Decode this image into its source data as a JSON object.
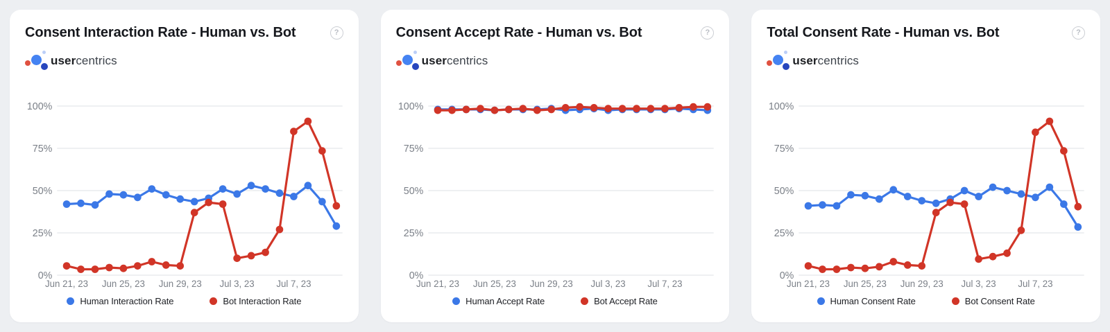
{
  "theme": {
    "page_bg": "#edeff2",
    "card_bg": "#ffffff",
    "title_color": "#16181d",
    "axis_label_color": "#7b8088",
    "grid_color": "#e9ebee",
    "human_color": "#3b78e7",
    "bot_color": "#d13527",
    "help_glyph": "?"
  },
  "logo": {
    "bold": "user",
    "light": "centrics"
  },
  "cards": [
    {
      "title": "Consent Interaction Rate - Human vs. Bot"
    },
    {
      "title": "Consent Accept Rate - Human vs. Bot"
    },
    {
      "title": "Total Consent Rate - Human vs. Bot"
    }
  ],
  "chart_data": [
    {
      "type": "line",
      "title": "Consent Interaction Rate - Human vs. Bot",
      "x": [
        "Jun 21, 23",
        "Jun 22, 23",
        "Jun 23, 23",
        "Jun 24, 23",
        "Jun 25, 23",
        "Jun 26, 23",
        "Jun 27, 23",
        "Jun 28, 23",
        "Jun 29, 23",
        "Jun 30, 23",
        "Jul 1, 23",
        "Jul 2, 23",
        "Jul 3, 23",
        "Jul 4, 23",
        "Jul 5, 23",
        "Jul 6, 23",
        "Jul 7, 23",
        "Jul 8, 23",
        "Jul 9, 23",
        "Jul 10, 23"
      ],
      "x_tick_indices": [
        0,
        4,
        8,
        12,
        16
      ],
      "x_tick_labels": [
        "Jun 21, 23",
        "Jun 25, 23",
        "Jun 29, 23",
        "Jul 3, 23",
        "Jul 7, 23"
      ],
      "ylim": [
        0,
        100
      ],
      "yticks": [
        0,
        25,
        50,
        75,
        100
      ],
      "ytick_labels": [
        "0%",
        "25%",
        "50%",
        "75%",
        "100%"
      ],
      "grid": true,
      "legend_position": "bottom",
      "series": [
        {
          "name": "Human Interaction Rate",
          "color": "#3b78e7",
          "values": [
            42,
            42.5,
            41.5,
            48,
            47.5,
            46,
            51,
            47.5,
            45,
            43.5,
            45.5,
            51,
            48,
            53,
            51,
            48.5,
            46.5,
            53,
            43.5,
            29
          ]
        },
        {
          "name": "Bot Interaction Rate",
          "color": "#d13527",
          "values": [
            5.5,
            3.5,
            3.5,
            4.5,
            4,
            5.5,
            8,
            6,
            5.5,
            37,
            43,
            42,
            10,
            11.5,
            13.5,
            27,
            85,
            91,
            73.5,
            41
          ]
        }
      ]
    },
    {
      "type": "line",
      "title": "Consent Accept Rate - Human vs. Bot",
      "x": [
        "Jun 21, 23",
        "Jun 22, 23",
        "Jun 23, 23",
        "Jun 24, 23",
        "Jun 25, 23",
        "Jun 26, 23",
        "Jun 27, 23",
        "Jun 28, 23",
        "Jun 29, 23",
        "Jun 30, 23",
        "Jul 1, 23",
        "Jul 2, 23",
        "Jul 3, 23",
        "Jul 4, 23",
        "Jul 5, 23",
        "Jul 6, 23",
        "Jul 7, 23",
        "Jul 8, 23",
        "Jul 9, 23",
        "Jul 10, 23"
      ],
      "x_tick_indices": [
        0,
        4,
        8,
        12,
        16
      ],
      "x_tick_labels": [
        "Jun 21, 23",
        "Jun 25, 23",
        "Jun 29, 23",
        "Jul 3, 23",
        "Jul 7, 23"
      ],
      "ylim": [
        0,
        100
      ],
      "yticks": [
        0,
        25,
        50,
        75,
        100
      ],
      "ytick_labels": [
        "0%",
        "25%",
        "50%",
        "75%",
        "100%"
      ],
      "grid": true,
      "legend_position": "bottom",
      "series": [
        {
          "name": "Human Accept Rate",
          "color": "#3b78e7",
          "values": [
            98,
            98,
            98,
            98,
            97.5,
            98,
            98,
            98,
            98.5,
            97.5,
            98,
            98.5,
            97.5,
            98,
            98,
            98,
            98,
            98.5,
            98,
            97.5
          ]
        },
        {
          "name": "Bot Accept Rate",
          "color": "#d13527",
          "values": [
            97.5,
            97.5,
            98,
            98.5,
            97.5,
            98,
            98.5,
            97.5,
            98,
            99,
            99.5,
            99,
            98.5,
            98.5,
            98.5,
            98.5,
            98.5,
            99,
            99.5,
            99.5
          ]
        }
      ]
    },
    {
      "type": "line",
      "title": "Total Consent Rate - Human vs. Bot",
      "x": [
        "Jun 21, 23",
        "Jun 22, 23",
        "Jun 23, 23",
        "Jun 24, 23",
        "Jun 25, 23",
        "Jun 26, 23",
        "Jun 27, 23",
        "Jun 28, 23",
        "Jun 29, 23",
        "Jun 30, 23",
        "Jul 1, 23",
        "Jul 2, 23",
        "Jul 3, 23",
        "Jul 4, 23",
        "Jul 5, 23",
        "Jul 6, 23",
        "Jul 7, 23",
        "Jul 8, 23",
        "Jul 9, 23",
        "Jul 10, 23"
      ],
      "x_tick_indices": [
        0,
        4,
        8,
        12,
        16
      ],
      "x_tick_labels": [
        "Jun 21, 23",
        "Jun 25, 23",
        "Jun 29, 23",
        "Jul 3, 23",
        "Jul 7, 23"
      ],
      "ylim": [
        0,
        100
      ],
      "yticks": [
        0,
        25,
        50,
        75,
        100
      ],
      "ytick_labels": [
        "0%",
        "25%",
        "50%",
        "75%",
        "100%"
      ],
      "grid": true,
      "legend_position": "bottom",
      "series": [
        {
          "name": "Human Consent Rate",
          "color": "#3b78e7",
          "values": [
            41,
            41.5,
            41,
            47.5,
            47,
            45,
            50.5,
            46.5,
            44,
            42.5,
            45,
            50,
            46.5,
            52,
            50,
            48,
            46,
            52,
            42,
            28.5
          ]
        },
        {
          "name": "Bot Consent Rate",
          "color": "#d13527",
          "values": [
            5.5,
            3.5,
            3.5,
            4.5,
            4,
            5,
            8,
            6,
            5.5,
            37,
            43,
            42,
            9.5,
            11,
            13,
            26.5,
            84.5,
            91,
            73.5,
            40.5
          ]
        }
      ]
    }
  ]
}
